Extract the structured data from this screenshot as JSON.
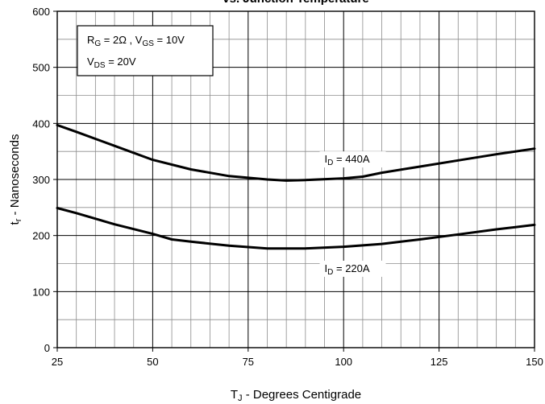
{
  "chart_data": {
    "type": "line",
    "title": "vs. Junction Temperature",
    "xlabel": {
      "main": "T",
      "sub": "J",
      "rest": " - Degrees Centigrade"
    },
    "ylabel": {
      "main": "t",
      "sub": "r",
      "rest": " - Nanoseconds"
    },
    "xlim": [
      25,
      150
    ],
    "ylim": [
      0,
      600
    ],
    "xticks": [
      25,
      50,
      75,
      100,
      125,
      150
    ],
    "yticks": [
      0,
      100,
      200,
      300,
      400,
      500,
      600
    ],
    "minor_x_step": 5,
    "minor_y_step": 50,
    "grid": true,
    "legend_box": {
      "line1": [
        {
          "t": "R"
        },
        {
          "t": "G",
          "sub": true
        },
        {
          "t": " = 2Ω ,  V"
        },
        {
          "t": "GS",
          "sub": true
        },
        {
          "t": " = 10V"
        }
      ],
      "line2": [
        {
          "t": "V"
        },
        {
          "t": "DS",
          "sub": true
        },
        {
          "t": " = 20V"
        }
      ]
    },
    "series": [
      {
        "label_main": "I",
        "label_sub": "D",
        "label_rest": " = 440A",
        "x": [
          25,
          30,
          40,
          50,
          60,
          70,
          80,
          85,
          90,
          100,
          105,
          110,
          120,
          130,
          140,
          150
        ],
        "y": [
          397,
          385,
          360,
          335,
          318,
          306,
          300,
          298,
          299,
          302,
          305,
          312,
          323,
          334,
          345,
          355
        ]
      },
      {
        "label_main": "I",
        "label_sub": "D",
        "label_rest": " = 220A",
        "x": [
          25,
          30,
          40,
          50,
          55,
          60,
          70,
          80,
          90,
          100,
          110,
          120,
          130,
          140,
          150
        ],
        "y": [
          249,
          240,
          220,
          203,
          193,
          189,
          182,
          177,
          177,
          180,
          185,
          193,
          202,
          211,
          219
        ]
      }
    ],
    "series_label_pos": [
      {
        "x": 95,
        "y": 330
      },
      {
        "x": 95,
        "y": 135
      }
    ]
  }
}
